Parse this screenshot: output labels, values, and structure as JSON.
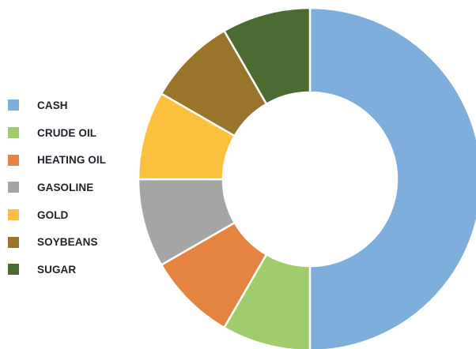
{
  "chart_data": {
    "type": "pie",
    "variant": "donut",
    "legend_position": "left",
    "categories": [
      "CASH",
      "CRUDE OIL",
      "HEATING OIL",
      "GASOLINE",
      "GOLD",
      "SOYBEANS",
      "SUGAR"
    ],
    "values": [
      50,
      8.33,
      8.33,
      8.33,
      8.33,
      8.34,
      8.33
    ],
    "colors": [
      "#7eaedb",
      "#a0cc6b",
      "#e58441",
      "#a5a5a5",
      "#fbc13c",
      "#9a742b",
      "#4b6b33"
    ]
  }
}
